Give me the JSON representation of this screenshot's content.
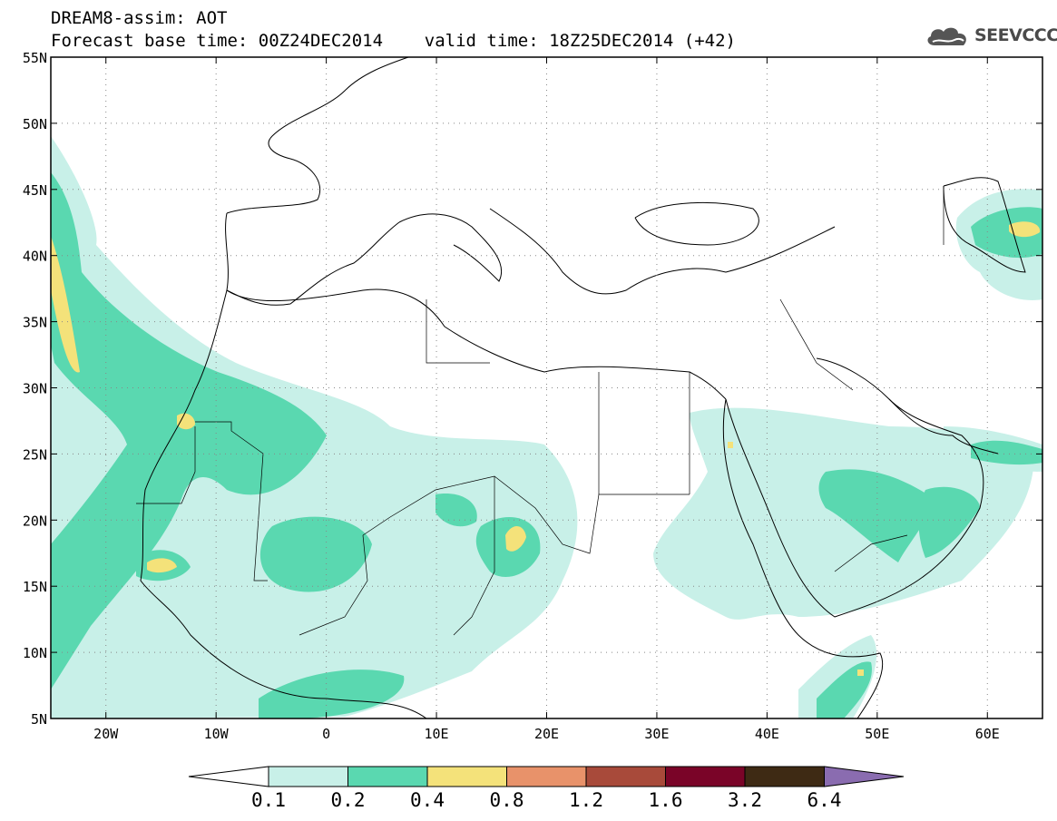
{
  "header": {
    "title_line1": "DREAM8-assim: AOT",
    "title_line2": "Forecast base time: 00Z24DEC2014    valid time: 18Z25DEC2014 (+42)",
    "logo_text": "SEEVCCC"
  },
  "map": {
    "variable": "AOT",
    "lat_labels": [
      "55N",
      "50N",
      "45N",
      "40N",
      "35N",
      "30N",
      "25N",
      "20N",
      "15N",
      "10N",
      "5N"
    ],
    "lon_labels": [
      "20W",
      "10W",
      "0",
      "10E",
      "20E",
      "30E",
      "40E",
      "50E",
      "60E"
    ],
    "lat_range": [
      5,
      55
    ],
    "lon_range": [
      -25,
      65
    ],
    "grid": "dotted"
  },
  "colorbar": {
    "labels": [
      "0.1",
      "0.2",
      "0.4",
      "0.8",
      "1.2",
      "1.6",
      "3.2",
      "6.4"
    ],
    "colors": [
      "#ffffff",
      "#c8f0e8",
      "#5ad8b0",
      "#f4e27a",
      "#e8926a",
      "#a84a3a",
      "#7a0428",
      "#3e2a14",
      "#8a6cb0"
    ]
  }
}
